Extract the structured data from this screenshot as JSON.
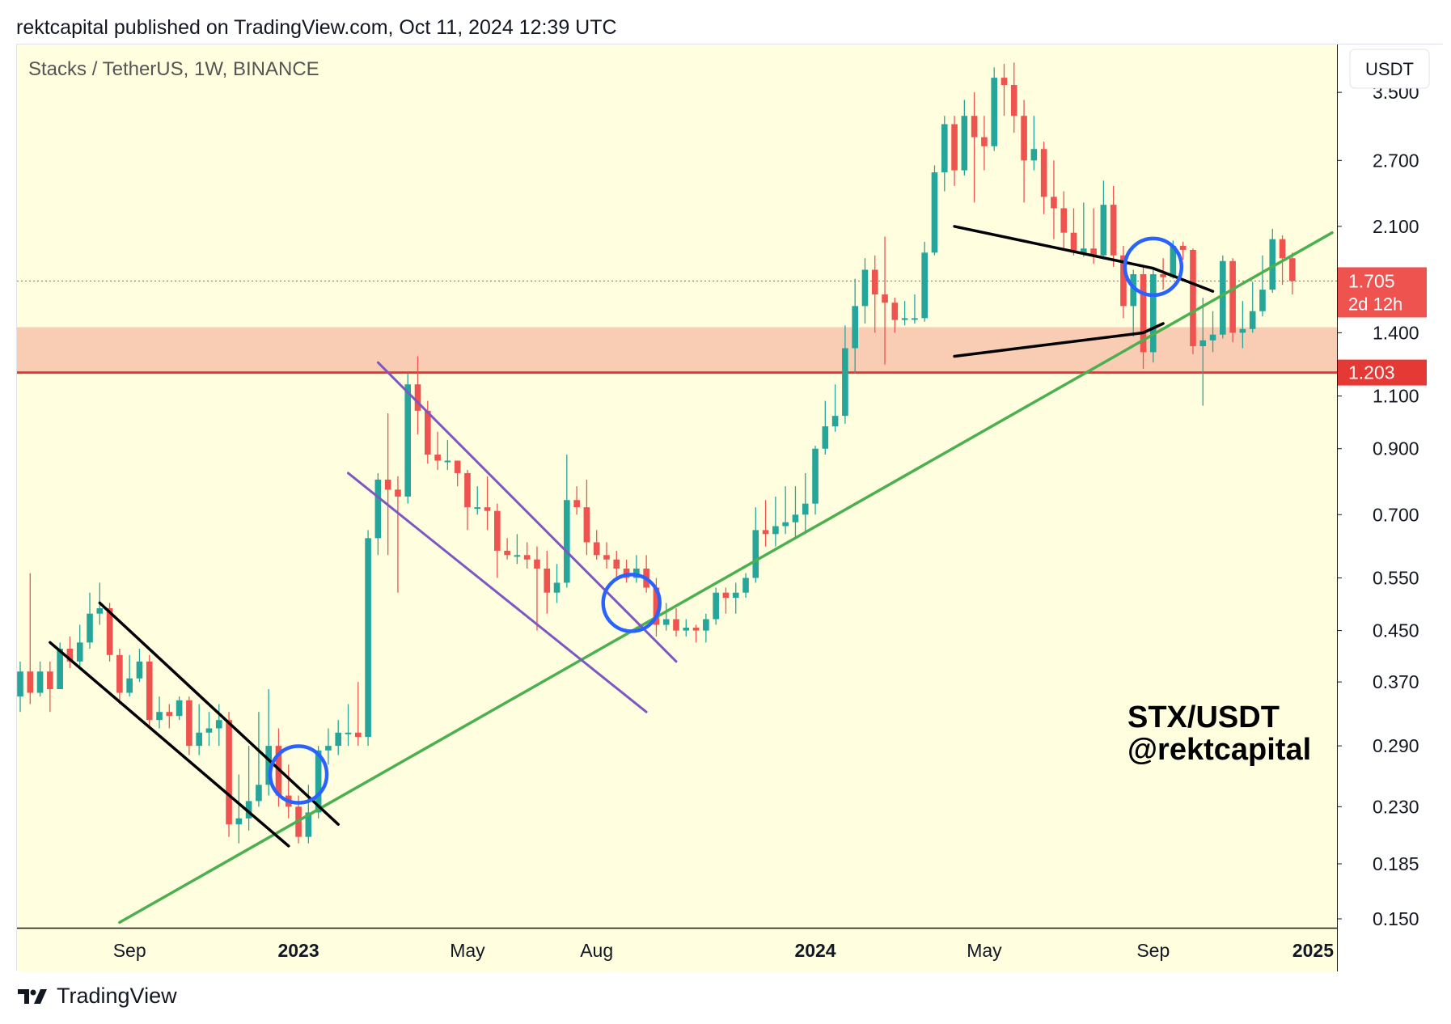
{
  "header": {
    "text": "rektcapital published on TradingView.com, Oct 11, 2024 12:39 UTC"
  },
  "footer": {
    "brand": "TradingView",
    "logo_icon": "tradingview-logo-icon"
  },
  "colors": {
    "background": "#ffffe0",
    "up": "#26a69a",
    "down": "#ef5350",
    "support_line": "#e53935",
    "support_zone": "#f9cdb4",
    "trendline_green": "#4caf50",
    "channel_black": "#000000",
    "channel_purple": "#7e57c2",
    "circle_blue": "#2962ff"
  },
  "chart_data": {
    "type": "candlestick",
    "title": "Stacks / TetherUS, 1W, BINANCE",
    "symbol": "STX/USDT",
    "watermark": [
      "STX/USDT",
      "@rektcapital"
    ],
    "currency_label": "USDT",
    "yscale": "log",
    "ylim": [
      0.145,
      4.2
    ],
    "xlim": [
      0,
      132
    ],
    "y_ticks": [
      "3.500",
      "2.700",
      "2.100",
      "1.400",
      "1.100",
      "0.900",
      "0.700",
      "0.550",
      "0.450",
      "0.370",
      "0.290",
      "0.230",
      "0.185",
      "0.150"
    ],
    "x_ticks": [
      {
        "label": "Sep",
        "week": 11,
        "bold": false
      },
      {
        "label": "2023",
        "week": 28,
        "bold": true
      },
      {
        "label": "May",
        "week": 45,
        "bold": false
      },
      {
        "label": "Aug",
        "week": 58,
        "bold": false
      },
      {
        "label": "2024",
        "week": 80,
        "bold": true
      },
      {
        "label": "May",
        "week": 97,
        "bold": false
      },
      {
        "label": "Sep",
        "week": 114,
        "bold": false
      },
      {
        "label": "2025",
        "week": 132,
        "bold": true
      }
    ],
    "current_price": {
      "label": "1.705",
      "value": 1.705,
      "countdown": "2d 12h"
    },
    "support_level": {
      "label": "1.203",
      "value": 1.203
    },
    "support_zone": [
      1.203,
      1.43
    ],
    "candles": [
      [
        0.35,
        0.385,
        0.33,
        0.4
      ],
      [
        0.385,
        0.355,
        0.34,
        0.56
      ],
      [
        0.355,
        0.385,
        0.35,
        0.4
      ],
      [
        0.385,
        0.36,
        0.33,
        0.4
      ],
      [
        0.36,
        0.42,
        0.36,
        0.43
      ],
      [
        0.42,
        0.4,
        0.39,
        0.44
      ],
      [
        0.4,
        0.43,
        0.39,
        0.46
      ],
      [
        0.43,
        0.48,
        0.42,
        0.52
      ],
      [
        0.48,
        0.49,
        0.46,
        0.54
      ],
      [
        0.49,
        0.41,
        0.4,
        0.5
      ],
      [
        0.41,
        0.355,
        0.34,
        0.42
      ],
      [
        0.355,
        0.375,
        0.35,
        0.41
      ],
      [
        0.375,
        0.4,
        0.37,
        0.42
      ],
      [
        0.4,
        0.32,
        0.31,
        0.41
      ],
      [
        0.32,
        0.33,
        0.31,
        0.35
      ],
      [
        0.33,
        0.325,
        0.31,
        0.34
      ],
      [
        0.325,
        0.345,
        0.32,
        0.35
      ],
      [
        0.345,
        0.29,
        0.28,
        0.35
      ],
      [
        0.29,
        0.305,
        0.28,
        0.34
      ],
      [
        0.305,
        0.31,
        0.29,
        0.33
      ],
      [
        0.31,
        0.32,
        0.29,
        0.34
      ],
      [
        0.32,
        0.215,
        0.205,
        0.33
      ],
      [
        0.215,
        0.22,
        0.2,
        0.26
      ],
      [
        0.22,
        0.235,
        0.21,
        0.29
      ],
      [
        0.235,
        0.25,
        0.23,
        0.33
      ],
      [
        0.25,
        0.29,
        0.24,
        0.36
      ],
      [
        0.29,
        0.24,
        0.23,
        0.31
      ],
      [
        0.24,
        0.23,
        0.22,
        0.27
      ],
      [
        0.23,
        0.205,
        0.2,
        0.24
      ],
      [
        0.205,
        0.225,
        0.2,
        0.25
      ],
      [
        0.225,
        0.285,
        0.22,
        0.29
      ],
      [
        0.285,
        0.29,
        0.27,
        0.31
      ],
      [
        0.29,
        0.305,
        0.28,
        0.32
      ],
      [
        0.305,
        0.305,
        0.29,
        0.34
      ],
      [
        0.305,
        0.3,
        0.29,
        0.37
      ],
      [
        0.3,
        0.64,
        0.29,
        0.66
      ],
      [
        0.64,
        0.8,
        0.6,
        0.82
      ],
      [
        0.8,
        0.77,
        0.6,
        1.03
      ],
      [
        0.77,
        0.75,
        0.52,
        0.81
      ],
      [
        0.75,
        1.15,
        0.73,
        1.2
      ],
      [
        1.15,
        1.04,
        0.95,
        1.28
      ],
      [
        1.04,
        0.88,
        0.85,
        1.08
      ],
      [
        0.88,
        0.86,
        0.83,
        0.96
      ],
      [
        0.86,
        0.86,
        0.83,
        0.93
      ],
      [
        0.86,
        0.82,
        0.78,
        0.86
      ],
      [
        0.82,
        0.72,
        0.66,
        0.83
      ],
      [
        0.72,
        0.72,
        0.7,
        0.78
      ],
      [
        0.72,
        0.71,
        0.66,
        0.81
      ],
      [
        0.71,
        0.61,
        0.55,
        0.73
      ],
      [
        0.61,
        0.6,
        0.59,
        0.64
      ],
      [
        0.6,
        0.6,
        0.58,
        0.65
      ],
      [
        0.6,
        0.59,
        0.57,
        0.63
      ],
      [
        0.59,
        0.57,
        0.45,
        0.62
      ],
      [
        0.57,
        0.52,
        0.48,
        0.61
      ],
      [
        0.52,
        0.54,
        0.5,
        0.58
      ],
      [
        0.54,
        0.74,
        0.53,
        0.88
      ],
      [
        0.74,
        0.72,
        0.7,
        0.78
      ],
      [
        0.72,
        0.63,
        0.6,
        0.8
      ],
      [
        0.63,
        0.6,
        0.59,
        0.66
      ],
      [
        0.6,
        0.59,
        0.57,
        0.63
      ],
      [
        0.59,
        0.57,
        0.55,
        0.61
      ],
      [
        0.57,
        0.55,
        0.54,
        0.59
      ],
      [
        0.55,
        0.57,
        0.54,
        0.6
      ],
      [
        0.57,
        0.53,
        0.52,
        0.6
      ],
      [
        0.53,
        0.46,
        0.44,
        0.55
      ],
      [
        0.46,
        0.47,
        0.45,
        0.5
      ],
      [
        0.47,
        0.45,
        0.44,
        0.49
      ],
      [
        0.45,
        0.455,
        0.44,
        0.47
      ],
      [
        0.455,
        0.45,
        0.43,
        0.46
      ],
      [
        0.45,
        0.47,
        0.43,
        0.48
      ],
      [
        0.47,
        0.52,
        0.46,
        0.53
      ],
      [
        0.52,
        0.51,
        0.48,
        0.53
      ],
      [
        0.51,
        0.52,
        0.48,
        0.54
      ],
      [
        0.52,
        0.55,
        0.51,
        0.56
      ],
      [
        0.55,
        0.66,
        0.54,
        0.72
      ],
      [
        0.66,
        0.65,
        0.62,
        0.74
      ],
      [
        0.65,
        0.67,
        0.62,
        0.75
      ],
      [
        0.67,
        0.68,
        0.65,
        0.78
      ],
      [
        0.68,
        0.7,
        0.64,
        0.78
      ],
      [
        0.7,
        0.73,
        0.65,
        0.82
      ],
      [
        0.73,
        0.9,
        0.7,
        0.91
      ],
      [
        0.9,
        0.98,
        0.88,
        1.08
      ],
      [
        0.98,
        1.02,
        0.96,
        1.15
      ],
      [
        1.02,
        1.32,
        0.99,
        1.44
      ],
      [
        1.32,
        1.55,
        1.2,
        1.72
      ],
      [
        1.55,
        1.78,
        1.45,
        1.86
      ],
      [
        1.78,
        1.62,
        1.4,
        1.88
      ],
      [
        1.62,
        1.57,
        1.24,
        2.02
      ],
      [
        1.57,
        1.47,
        1.4,
        1.6
      ],
      [
        1.47,
        1.48,
        1.44,
        1.58
      ],
      [
        1.48,
        1.48,
        1.45,
        1.62
      ],
      [
        1.48,
        1.9,
        1.46,
        1.98
      ],
      [
        1.9,
        2.58,
        1.88,
        2.65
      ],
      [
        2.58,
        3.1,
        2.4,
        3.2
      ],
      [
        3.1,
        2.6,
        2.45,
        3.2
      ],
      [
        2.6,
        3.2,
        2.55,
        3.4
      ],
      [
        3.2,
        2.95,
        2.3,
        3.5
      ],
      [
        2.95,
        2.85,
        2.6,
        3.2
      ],
      [
        2.85,
        3.7,
        2.8,
        3.85
      ],
      [
        3.7,
        3.6,
        3.2,
        3.9
      ],
      [
        3.6,
        3.2,
        3.0,
        3.92
      ],
      [
        3.2,
        2.7,
        2.3,
        3.4
      ],
      [
        2.7,
        2.82,
        2.6,
        3.2
      ],
      [
        2.82,
        2.35,
        2.2,
        2.9
      ],
      [
        2.35,
        2.25,
        2.0,
        2.7
      ],
      [
        2.25,
        2.05,
        1.92,
        2.4
      ],
      [
        2.05,
        1.9,
        1.88,
        2.25
      ],
      [
        1.9,
        1.93,
        1.87,
        2.3
      ],
      [
        1.93,
        1.88,
        1.82,
        2.25
      ],
      [
        1.88,
        2.28,
        1.85,
        2.5
      ],
      [
        2.28,
        1.88,
        1.8,
        2.45
      ],
      [
        1.88,
        1.55,
        1.48,
        1.95
      ],
      [
        1.55,
        1.75,
        1.38,
        1.78
      ],
      [
        1.75,
        1.3,
        1.22,
        1.8
      ],
      [
        1.3,
        1.75,
        1.25,
        1.8
      ],
      [
        1.75,
        1.73,
        1.65,
        1.86
      ],
      [
        1.73,
        1.95,
        1.72,
        1.99
      ],
      [
        1.95,
        1.92,
        1.85,
        1.98
      ],
      [
        1.92,
        1.33,
        1.29,
        1.93
      ],
      [
        1.33,
        1.36,
        1.06,
        1.6
      ],
      [
        1.36,
        1.39,
        1.3,
        1.52
      ],
      [
        1.39,
        1.84,
        1.37,
        1.88
      ],
      [
        1.84,
        1.4,
        1.35,
        1.86
      ],
      [
        1.4,
        1.42,
        1.32,
        1.58
      ],
      [
        1.42,
        1.52,
        1.4,
        1.7
      ],
      [
        1.52,
        1.65,
        1.49,
        1.88
      ],
      [
        1.65,
        2.0,
        1.63,
        2.08
      ],
      [
        2.0,
        1.86,
        1.68,
        2.03
      ],
      [
        1.86,
        1.705,
        1.62,
        1.9
      ]
    ],
    "drawings": {
      "green_trendline": [
        [
          10,
          0.148
        ],
        [
          132,
          2.05
        ]
      ],
      "black_channel_upper": [
        [
          8,
          0.5
        ],
        [
          32,
          0.215
        ]
      ],
      "black_channel_lower": [
        [
          3,
          0.43
        ],
        [
          27,
          0.198
        ]
      ],
      "purple_channel_upper": [
        [
          36,
          1.25
        ],
        [
          66,
          0.4
        ]
      ],
      "purple_channel_lower": [
        [
          33,
          0.82
        ],
        [
          63,
          0.33
        ]
      ],
      "triangle_upper": [
        [
          94,
          2.1
        ],
        [
          114,
          1.79
        ],
        [
          120,
          1.64
        ]
      ],
      "triangle_lower": [
        [
          94,
          1.28
        ],
        [
          113,
          1.4
        ],
        [
          115,
          1.45
        ]
      ],
      "breakout_circles": [
        [
          28,
          0.26
        ],
        [
          61.5,
          0.5
        ],
        [
          114,
          1.8
        ]
      ]
    }
  }
}
